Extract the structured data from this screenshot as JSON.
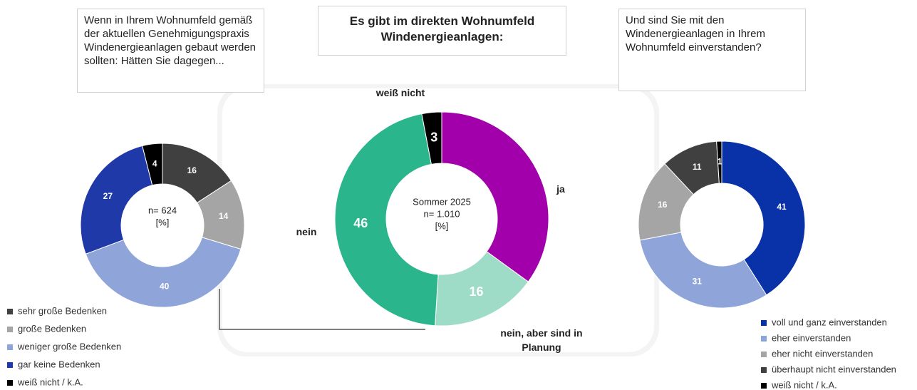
{
  "chart_data": [
    {
      "type": "donut",
      "title": "Wenn in Ihrem Wohnumfeld gemäß der aktuellen Genehmigungspraxis Windenergieanlagen gebaut werden sollten: Hätten Sie dagegen...",
      "center_text": [
        "n= 624",
        "[%]"
      ],
      "categories": [
        "sehr große Bedenken",
        "große Bedenken",
        "weniger große Bedenken",
        "gar keine Bedenken",
        "weiß nicht / k.A."
      ],
      "values": [
        16,
        14,
        40,
        27,
        4
      ],
      "colors": [
        "#404040",
        "#a5a5a5",
        "#8fa5d9",
        "#1f3aa8",
        "#000000"
      ],
      "legend": "bottom-left"
    },
    {
      "type": "donut",
      "title": "Es gibt im direkten Wohnumfeld Windenergieanlagen:",
      "center_text": [
        "Sommer 2025",
        "n= 1.010",
        "[%]"
      ],
      "categories": [
        "ja",
        "nein, aber sind in Planung",
        "nein",
        "weiß nicht"
      ],
      "values": [
        35,
        16,
        46,
        3
      ],
      "value_labels": [
        null,
        "16",
        "46",
        "3"
      ],
      "colors": [
        "#a100aa",
        "#9fdcc8",
        "#2bb58d",
        "#000000"
      ],
      "legend": "none"
    },
    {
      "type": "donut",
      "title": "Und sind Sie mit den Windenergieanlagen in Ihrem Wohnumfeld einverstanden?",
      "center_text": [],
      "categories": [
        "voll und ganz einverstanden",
        "eher einverstanden",
        "eher nicht einverstanden",
        "überhaupt nicht einverstanden",
        "weiß nicht / k.A."
      ],
      "values": [
        41,
        31,
        16,
        11,
        1
      ],
      "colors": [
        "#0a32a8",
        "#8fa5d9",
        "#a5a5a5",
        "#404040",
        "#000000"
      ],
      "legend": "bottom-right"
    }
  ]
}
